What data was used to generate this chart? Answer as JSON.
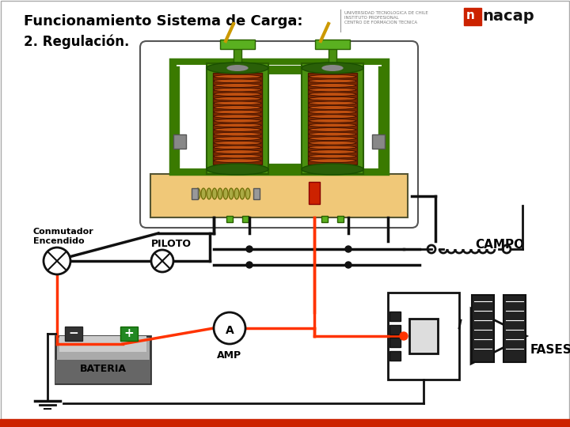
{
  "title1": "Funcionamiento Sistema de Carga:",
  "title2": "2. Regulación.",
  "label_conmutador": "Conmutador\nEncendido",
  "label_piloto": "PILOTO",
  "label_campo": "CAMPO",
  "label_amp": "AMP",
  "label_a": "A",
  "label_bateria": "BATERIA",
  "label_fases": "FASES",
  "bg_color": "#ffffff",
  "bottom_bar_color": "#cc2200",
  "text_color": "#000000",
  "wire_black": "#111111",
  "wire_red": "#ff3300",
  "regulator_tan": "#f0c878",
  "regulator_border": "#333333",
  "coil_brown": "#8B3a00",
  "coil_green": "#3a7a00",
  "nacap_red": "#cc2200",
  "battery_body": "#888888",
  "battery_dark": "#444444"
}
